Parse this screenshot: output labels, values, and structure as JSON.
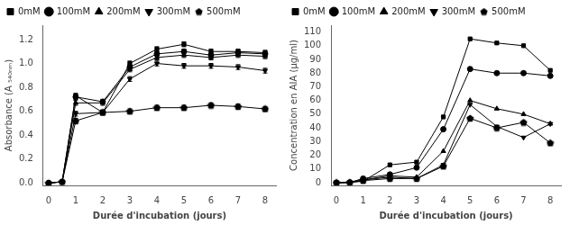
{
  "chart_data": [
    {
      "type": "line",
      "xlabel": "Durée d'incubation (jours)",
      "ylabel": "Absorbance (A ₅₄₀ₙₘ)",
      "x": [
        0,
        0.5,
        1,
        2,
        3,
        4,
        5,
        6,
        7,
        8
      ],
      "series": [
        {
          "name": "0mM",
          "color": "black",
          "marker": "square",
          "values": [
            0,
            0.01,
            0.73,
            0.59,
            1.0,
            1.12,
            1.16,
            1.1,
            1.1,
            1.09
          ],
          "errors": [
            0,
            0,
            0.02,
            0.02,
            0.02,
            0.02,
            0.02,
            0.02,
            0.02,
            0.02
          ]
        },
        {
          "name": "100mM",
          "color": "black",
          "marker": "circle",
          "values": [
            0,
            0.01,
            0.72,
            0.68,
            0.97,
            1.08,
            1.1,
            1.07,
            1.09,
            1.08
          ],
          "errors": [
            0,
            0,
            0.02,
            0.02,
            0.02,
            0.02,
            0.02,
            0.02,
            0.02,
            0.02
          ]
        },
        {
          "name": "200mM",
          "color": "black",
          "marker": "triangle-up",
          "values": [
            0,
            0.01,
            0.67,
            0.67,
            0.95,
            1.05,
            1.07,
            1.05,
            1.07,
            1.06
          ],
          "errors": [
            0,
            0,
            0.02,
            0.02,
            0.02,
            0.02,
            0.02,
            0.02,
            0.02,
            0.02
          ]
        },
        {
          "name": "300mM",
          "color": "black",
          "marker": "triangle-down",
          "values": [
            0,
            0.01,
            0.58,
            0.59,
            0.87,
            1.0,
            0.98,
            0.98,
            0.97,
            0.94
          ],
          "errors": [
            0,
            0,
            0.02,
            0.02,
            0.02,
            0.02,
            0.02,
            0.02,
            0.02,
            0.02
          ]
        },
        {
          "name": "500mM",
          "color": "black",
          "marker": "pentagon",
          "values": [
            0,
            0.01,
            0.52,
            0.59,
            0.6,
            0.63,
            0.63,
            0.65,
            0.64,
            0.62
          ],
          "errors": [
            0,
            0,
            0.02,
            0.02,
            0.02,
            0.02,
            0.02,
            0.02,
            0.02,
            0.02
          ]
        }
      ],
      "xlim": [
        -0.2,
        8.4
      ],
      "xticks": [
        0,
        1,
        2,
        3,
        4,
        5,
        6,
        7,
        8
      ],
      "ylim": [
        -0.02,
        1.32
      ],
      "yticks": [
        {
          "value": 0,
          "label": "0.0"
        },
        0.2,
        0.4,
        0.6,
        0.8,
        {
          "value": 1,
          "label": "1.0"
        },
        1.2
      ],
      "grid": false,
      "legend": "upper left"
    },
    {
      "type": "line",
      "xlabel": "Durée d'incubation (jours)",
      "ylabel": "Concentration en AIA (µg/ml)",
      "x": [
        0,
        0.5,
        1,
        2,
        3,
        4,
        5,
        6,
        7,
        8
      ],
      "series": [
        {
          "name": "0mM",
          "color": "black",
          "marker": "square",
          "values": [
            0,
            0.2,
            1.0,
            13,
            15,
            48,
            105,
            102,
            100,
            82
          ]
        },
        {
          "name": "100mM",
          "color": "black",
          "marker": "circle",
          "values": [
            0,
            0.2,
            3.0,
            6,
            11,
            39,
            83,
            80,
            80,
            78
          ]
        },
        {
          "name": "200mM",
          "color": "black",
          "marker": "triangle-up",
          "values": [
            0,
            0.2,
            2.0,
            5,
            4,
            23,
            60,
            54,
            50,
            43
          ]
        },
        {
          "name": "300mM",
          "color": "black",
          "marker": "triangle-down",
          "values": [
            0,
            0.2,
            2.0,
            4,
            3,
            13,
            57,
            41,
            33,
            43
          ]
        },
        {
          "name": "500mM",
          "color": "black",
          "marker": "pentagon",
          "values": [
            0,
            0.2,
            1.5,
            3,
            3,
            12,
            47,
            40,
            44,
            29
          ]
        }
      ],
      "xlim": [
        -0.2,
        8.4
      ],
      "xticks": [
        0,
        1,
        2,
        3,
        4,
        5,
        6,
        7,
        8
      ],
      "ylim": [
        -2,
        115
      ],
      "yticks": [
        0,
        10,
        20,
        30,
        40,
        50,
        60,
        70,
        80,
        90,
        100,
        110
      ],
      "grid": false,
      "legend": "upper left"
    }
  ]
}
